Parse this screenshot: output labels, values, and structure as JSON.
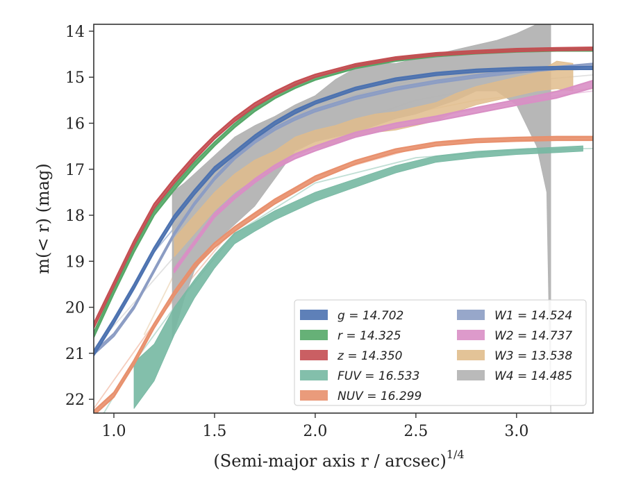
{
  "chart_data": {
    "type": "line",
    "xlabel": "(Semi-major axis r / arcsec)",
    "xlabel_sup": "1/4",
    "ylabel": "m(< r) (mag)",
    "xlim": [
      0.9,
      3.38
    ],
    "ylim": [
      22.3,
      13.85
    ],
    "y_inverted": true,
    "xticks": [
      1.0,
      1.5,
      2.0,
      2.5,
      3.0
    ],
    "xtick_labels": [
      "1.0",
      "1.5",
      "2.0",
      "2.5",
      "3.0"
    ],
    "yticks": [
      14,
      15,
      16,
      17,
      18,
      19,
      20,
      21,
      22
    ],
    "ytick_labels": [
      "14",
      "15",
      "16",
      "17",
      "18",
      "19",
      "20",
      "21",
      "22"
    ],
    "grid": false,
    "legend_placement": "lower-right",
    "series": [
      {
        "name": "g = 14.702",
        "color": "#4c72b0",
        "x": [
          0.9,
          1.0,
          1.1,
          1.2,
          1.3,
          1.4,
          1.5,
          1.6,
          1.7,
          1.8,
          1.9,
          2.0,
          2.2,
          2.4,
          2.6,
          2.8,
          3.0,
          3.2,
          3.38
        ],
        "y": [
          21.0,
          20.3,
          19.55,
          18.75,
          18.05,
          17.5,
          17.0,
          16.65,
          16.3,
          16.0,
          15.75,
          15.55,
          15.25,
          15.05,
          14.93,
          14.86,
          14.82,
          14.8,
          14.8
        ],
        "halfwidth": [
          0.05,
          0.05,
          0.05,
          0.05,
          0.05,
          0.05,
          0.05,
          0.04,
          0.04,
          0.04,
          0.04,
          0.03,
          0.03,
          0.03,
          0.03,
          0.03,
          0.03,
          0.03,
          0.03
        ]
      },
      {
        "name": "r = 14.325",
        "color": "#55a868",
        "x": [
          0.9,
          1.0,
          1.1,
          1.2,
          1.3,
          1.4,
          1.5,
          1.6,
          1.7,
          1.8,
          1.9,
          2.0,
          2.2,
          2.4,
          2.6,
          2.8,
          3.0,
          3.2,
          3.38
        ],
        "y": [
          20.6,
          19.65,
          18.75,
          17.95,
          17.4,
          16.9,
          16.45,
          16.05,
          15.7,
          15.42,
          15.2,
          15.03,
          14.78,
          14.62,
          14.52,
          14.46,
          14.42,
          14.4,
          14.4
        ],
        "halfwidth": [
          0.05,
          0.05,
          0.05,
          0.05,
          0.05,
          0.05,
          0.04,
          0.04,
          0.04,
          0.04,
          0.04,
          0.03,
          0.03,
          0.03,
          0.03,
          0.03,
          0.03,
          0.03,
          0.03
        ]
      },
      {
        "name": "z = 14.350",
        "color": "#c44e52",
        "x": [
          0.9,
          1.0,
          1.1,
          1.2,
          1.3,
          1.4,
          1.5,
          1.6,
          1.7,
          1.8,
          1.9,
          2.0,
          2.2,
          2.4,
          2.6,
          2.8,
          3.0,
          3.2,
          3.38
        ],
        "y": [
          20.4,
          19.5,
          18.6,
          17.8,
          17.25,
          16.75,
          16.3,
          15.92,
          15.6,
          15.35,
          15.14,
          14.97,
          14.74,
          14.59,
          14.5,
          14.45,
          14.41,
          14.39,
          14.38
        ],
        "halfwidth": [
          0.05,
          0.05,
          0.05,
          0.05,
          0.05,
          0.05,
          0.04,
          0.04,
          0.04,
          0.04,
          0.04,
          0.03,
          0.03,
          0.03,
          0.03,
          0.03,
          0.03,
          0.03,
          0.03
        ]
      },
      {
        "name": "FUV = 16.533",
        "color": "#76b8a2",
        "x": [
          1.1,
          1.2,
          1.3,
          1.4,
          1.5,
          1.6,
          1.7,
          1.8,
          1.9,
          2.0,
          2.2,
          2.4,
          2.6,
          2.8,
          3.0,
          3.2,
          3.33
        ],
        "y": [
          21.7,
          21.2,
          20.3,
          19.6,
          19.0,
          18.5,
          18.25,
          18.0,
          17.8,
          17.6,
          17.3,
          17.0,
          16.78,
          16.68,
          16.62,
          16.58,
          16.55
        ],
        "halfwidth": [
          0.5,
          0.4,
          0.3,
          0.2,
          0.15,
          0.12,
          0.1,
          0.1,
          0.1,
          0.1,
          0.09,
          0.08,
          0.07,
          0.07,
          0.06,
          0.06,
          0.06
        ]
      },
      {
        "name": "NUV = 16.299",
        "color": "#e8906d",
        "x": [
          0.9,
          1.0,
          1.1,
          1.2,
          1.3,
          1.4,
          1.5,
          1.6,
          1.7,
          1.8,
          1.9,
          2.0,
          2.2,
          2.4,
          2.6,
          2.8,
          3.0,
          3.2,
          3.38
        ],
        "y": [
          22.3,
          21.9,
          21.2,
          20.4,
          19.7,
          19.1,
          18.65,
          18.3,
          18.0,
          17.7,
          17.45,
          17.2,
          16.85,
          16.6,
          16.45,
          16.38,
          16.35,
          16.33,
          16.33
        ],
        "halfwidth": [
          0.05,
          0.05,
          0.05,
          0.05,
          0.05,
          0.05,
          0.05,
          0.05,
          0.05,
          0.05,
          0.05,
          0.05,
          0.04,
          0.04,
          0.04,
          0.04,
          0.04,
          0.04,
          0.04
        ]
      },
      {
        "name": "W1 = 14.524",
        "color": "#8c9dc4",
        "x": [
          0.9,
          1.0,
          1.1,
          1.2,
          1.3,
          1.4,
          1.5,
          1.6,
          1.7,
          1.8,
          1.9,
          2.0,
          2.2,
          2.4,
          2.6,
          2.8,
          3.0,
          3.2,
          3.38
        ],
        "y": [
          21.0,
          20.6,
          20.0,
          19.2,
          18.4,
          17.75,
          17.2,
          16.75,
          16.4,
          16.12,
          15.9,
          15.72,
          15.45,
          15.25,
          15.1,
          14.98,
          14.88,
          14.8,
          14.73
        ],
        "halfwidth": [
          0.03,
          0.03,
          0.03,
          0.03,
          0.03,
          0.03,
          0.03,
          0.03,
          0.03,
          0.03,
          0.03,
          0.03,
          0.03,
          0.03,
          0.03,
          0.03,
          0.03,
          0.03,
          0.03
        ]
      },
      {
        "name": "W2 = 14.737",
        "color": "#d98fc5",
        "x": [
          1.3,
          1.4,
          1.5,
          1.6,
          1.7,
          1.8,
          1.9,
          2.0,
          2.2,
          2.4,
          2.6,
          2.8,
          3.0,
          3.2,
          3.38
        ],
        "y": [
          19.2,
          18.6,
          18.0,
          17.6,
          17.25,
          16.95,
          16.72,
          16.55,
          16.25,
          16.05,
          15.9,
          15.72,
          15.55,
          15.38,
          15.15
        ],
        "halfwidth": [
          0.04,
          0.04,
          0.04,
          0.04,
          0.04,
          0.04,
          0.05,
          0.05,
          0.05,
          0.05,
          0.05,
          0.06,
          0.06,
          0.07,
          0.08
        ]
      },
      {
        "name": "W3 = 13.538",
        "color": "#e0bc8c",
        "x": [
          1.3,
          1.4,
          1.5,
          1.6,
          1.7,
          1.8,
          1.9,
          2.0,
          2.1,
          2.2,
          2.3,
          2.4,
          2.5,
          2.6,
          2.7,
          2.8,
          2.9,
          3.0,
          3.1,
          3.2,
          3.28
        ],
        "y": [
          18.7,
          18.2,
          17.7,
          17.3,
          17.0,
          16.8,
          16.5,
          16.35,
          16.25,
          16.1,
          16.0,
          15.95,
          15.85,
          15.75,
          15.55,
          15.4,
          15.3,
          15.2,
          15.1,
          14.95,
          15.0
        ],
        "halfwidth": [
          0.2,
          0.2,
          0.2,
          0.2,
          0.2,
          0.2,
          0.2,
          0.2,
          0.2,
          0.2,
          0.2,
          0.2,
          0.2,
          0.2,
          0.2,
          0.2,
          0.2,
          0.2,
          0.2,
          0.3,
          0.3
        ]
      },
      {
        "name": "W4 = 14.485",
        "color": "#b3b3b3",
        "x": [
          1.29,
          1.35,
          1.4,
          1.5,
          1.6,
          1.7,
          1.8,
          1.9,
          2.0,
          2.1,
          2.2,
          2.3,
          2.4,
          2.5,
          2.6,
          2.7,
          2.8,
          2.9,
          3.0,
          3.1,
          3.15,
          3.17
        ],
        "y_upper": [
          17.5,
          17.3,
          17.1,
          16.7,
          16.3,
          16.05,
          15.85,
          15.6,
          15.4,
          15.05,
          14.8,
          14.7,
          14.7,
          14.6,
          14.5,
          14.4,
          14.3,
          14.2,
          14.05,
          13.85,
          13.85,
          13.85
        ],
        "y_lower": [
          20.7,
          19.8,
          19.2,
          18.6,
          18.2,
          17.8,
          17.2,
          16.6,
          16.4,
          16.3,
          16.2,
          16.05,
          15.9,
          15.8,
          15.65,
          15.5,
          15.3,
          15.3,
          15.6,
          16.5,
          17.5,
          22.3
        ]
      }
    ],
    "faint_lines": [
      {
        "series": "g",
        "color": "#4c72b0",
        "x": [
          0.9,
          1.2,
          1.6,
          2.0,
          2.6,
          3.38
        ],
        "y": [
          21.05,
          18.8,
          16.7,
          15.6,
          14.95,
          14.82
        ]
      },
      {
        "series": "NUV",
        "color": "#e8906d",
        "x": [
          0.9,
          1.2,
          1.6,
          2.0,
          2.6,
          3.38
        ],
        "y": [
          22.2,
          20.35,
          18.25,
          17.15,
          16.42,
          16.3
        ]
      },
      {
        "series": "W4",
        "color": "#bdbdbd",
        "x": [
          0.9,
          1.2,
          1.5,
          1.8,
          2.1,
          2.5,
          3.0,
          3.38
        ],
        "y": [
          20.9,
          19.4,
          17.9,
          16.9,
          16.1,
          15.5,
          15.1,
          14.95
        ]
      },
      {
        "series": "W3",
        "color": "#e0bc8c",
        "x": [
          1.15,
          1.4,
          1.7,
          2.0,
          2.4,
          2.8,
          3.2,
          3.38
        ],
        "y": [
          20.6,
          18.4,
          17.0,
          16.3,
          15.85,
          15.5,
          15.3,
          15.25
        ]
      },
      {
        "series": "W2",
        "color": "#d98fc5",
        "x": [
          1.3,
          1.6,
          2.0,
          2.4,
          2.8,
          3.2,
          3.38
        ],
        "y": [
          19.1,
          17.5,
          16.5,
          16.0,
          15.7,
          15.4,
          15.3
        ]
      },
      {
        "series": "FUV",
        "color": "#76b8a2",
        "x": [
          0.95,
          1.1,
          1.3,
          1.6,
          2.0,
          2.5,
          3.0,
          3.38
        ],
        "y": [
          22.3,
          21.2,
          20.0,
          18.4,
          17.3,
          16.75,
          16.58,
          16.55
        ]
      }
    ]
  }
}
